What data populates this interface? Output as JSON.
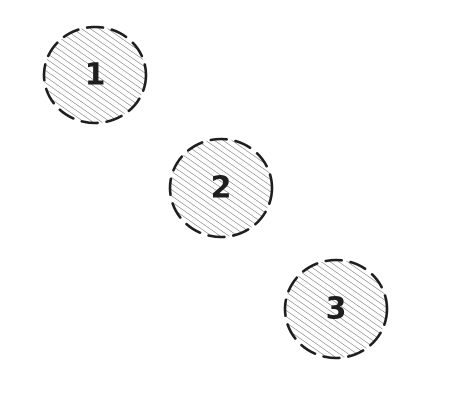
{
  "diagram": {
    "style": "hand-drawn sketch",
    "colors": {
      "stroke": "#1e1e1e",
      "hatch": "#1e1e1e",
      "background": "#ffffff"
    },
    "nodes": [
      {
        "id": "node-1",
        "label": "1",
        "shape": "circle",
        "fill": "hachure",
        "border": "dashed"
      },
      {
        "id": "node-2",
        "label": "2",
        "shape": "circle",
        "fill": "hachure",
        "border": "dashed"
      },
      {
        "id": "node-3",
        "label": "3",
        "shape": "circle",
        "fill": "hachure",
        "border": "dashed"
      }
    ]
  }
}
